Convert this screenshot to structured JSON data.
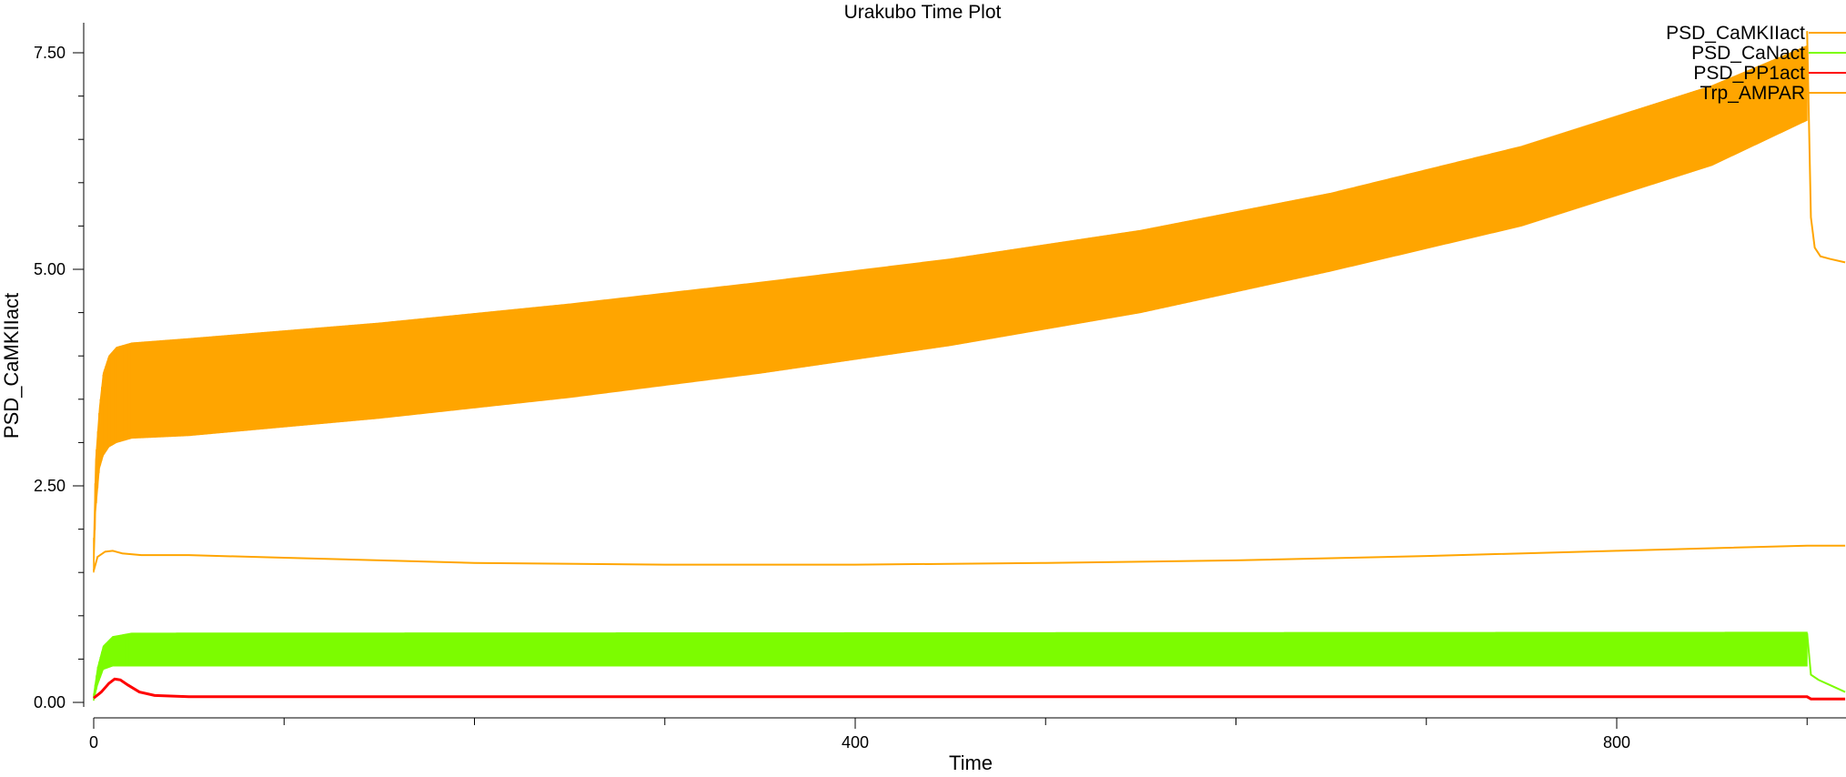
{
  "chart_data": {
    "type": "line",
    "title": "Urakubo Time Plot",
    "xlabel": "Time",
    "ylabel": "PSD_CaMKIIact",
    "xlim": [
      0,
      920
    ],
    "ylim": [
      0,
      7.9
    ],
    "x_ticks_labeled": [
      0,
      400,
      800
    ],
    "x_ticks_minor": [
      100,
      200,
      300,
      500,
      600,
      700,
      900
    ],
    "y_ticks_labeled": [
      {
        "value": 0,
        "label": "0.00"
      },
      {
        "value": 2.5,
        "label": "2.50"
      },
      {
        "value": 5,
        "label": "5.00"
      },
      {
        "value": 7.5,
        "label": "7.50"
      }
    ],
    "y_ticks_minor": [
      0.5,
      1.0,
      1.5,
      2.0,
      3.0,
      3.5,
      4.0,
      4.5,
      5.5,
      6.0,
      6.5,
      7.0
    ],
    "legend_position": "top-right",
    "series": [
      {
        "name": "PSD_CaMKIIact",
        "color": "#ffa500",
        "style": "oscillating-band",
        "upper": [
          [
            0,
            1.9
          ],
          [
            1,
            2.8
          ],
          [
            3,
            3.4
          ],
          [
            5,
            3.8
          ],
          [
            8,
            4.0
          ],
          [
            12,
            4.1
          ],
          [
            20,
            4.15
          ],
          [
            50,
            4.2
          ],
          [
            150,
            4.38
          ],
          [
            250,
            4.6
          ],
          [
            350,
            4.85
          ],
          [
            450,
            5.12
          ],
          [
            550,
            5.45
          ],
          [
            650,
            5.88
          ],
          [
            750,
            6.42
          ],
          [
            850,
            7.12
          ],
          [
            900,
            7.58
          ],
          [
            905,
            7.75
          ]
        ],
        "lower": [
          [
            0,
            1.5
          ],
          [
            1,
            2.2
          ],
          [
            3,
            2.7
          ],
          [
            5,
            2.85
          ],
          [
            8,
            2.95
          ],
          [
            12,
            3.0
          ],
          [
            20,
            3.05
          ],
          [
            50,
            3.08
          ],
          [
            150,
            3.28
          ],
          [
            250,
            3.52
          ],
          [
            350,
            3.8
          ],
          [
            450,
            4.12
          ],
          [
            550,
            4.5
          ],
          [
            650,
            4.98
          ],
          [
            750,
            5.5
          ],
          [
            850,
            6.2
          ],
          [
            900,
            6.72
          ]
        ],
        "tail": [
          [
            900,
            7.75
          ],
          [
            902,
            5.6
          ],
          [
            904,
            5.25
          ],
          [
            907,
            5.15
          ],
          [
            912,
            5.12
          ],
          [
            920,
            5.08
          ]
        ]
      },
      {
        "name": "PSD_CaNact",
        "color": "#7cfc00",
        "style": "oscillating-band",
        "upper": [
          [
            0,
            0.1
          ],
          [
            2,
            0.4
          ],
          [
            5,
            0.65
          ],
          [
            10,
            0.76
          ],
          [
            20,
            0.8
          ],
          [
            900,
            0.81
          ]
        ],
        "lower": [
          [
            0,
            0.02
          ],
          [
            2,
            0.2
          ],
          [
            5,
            0.38
          ],
          [
            10,
            0.42
          ],
          [
            20,
            0.42
          ],
          [
            900,
            0.42
          ]
        ],
        "tail": [
          [
            900,
            0.8
          ],
          [
            902,
            0.32
          ],
          [
            906,
            0.26
          ],
          [
            912,
            0.2
          ],
          [
            920,
            0.12
          ]
        ]
      },
      {
        "name": "PSD_PP1act",
        "color": "#ff0000",
        "style": "line",
        "points": [
          [
            0,
            0.05
          ],
          [
            4,
            0.12
          ],
          [
            8,
            0.22
          ],
          [
            11,
            0.27
          ],
          [
            14,
            0.26
          ],
          [
            18,
            0.2
          ],
          [
            24,
            0.12
          ],
          [
            32,
            0.08
          ],
          [
            50,
            0.065
          ],
          [
            200,
            0.065
          ],
          [
            900,
            0.065
          ],
          [
            902,
            0.04
          ],
          [
            920,
            0.04
          ]
        ]
      },
      {
        "name": "Trp_AMPAR",
        "color": "#ffa500",
        "style": "line",
        "points": [
          [
            0,
            1.52
          ],
          [
            2,
            1.68
          ],
          [
            6,
            1.74
          ],
          [
            10,
            1.75
          ],
          [
            15,
            1.72
          ],
          [
            25,
            1.7
          ],
          [
            50,
            1.7
          ],
          [
            100,
            1.67
          ],
          [
            200,
            1.61
          ],
          [
            300,
            1.59
          ],
          [
            400,
            1.59
          ],
          [
            500,
            1.61
          ],
          [
            600,
            1.64
          ],
          [
            700,
            1.69
          ],
          [
            800,
            1.75
          ],
          [
            900,
            1.81
          ],
          [
            920,
            1.81
          ]
        ]
      }
    ]
  }
}
